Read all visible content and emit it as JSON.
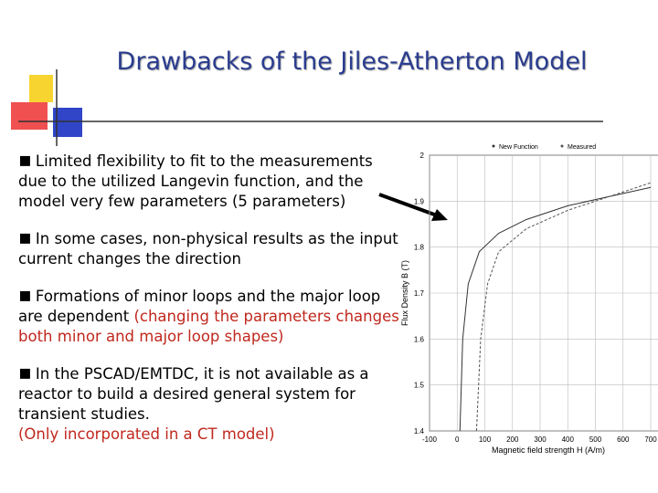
{
  "header": {
    "title": "Drawbacks of the Jiles-Atherton Model"
  },
  "bullets": [
    {
      "text": "Limited flexibility to fit to the measurements due to the utilized Langevin function, and the model very few parameters (5 parameters)"
    },
    {
      "text": "In some cases, non-physical results as the input current changes the direction"
    },
    {
      "text": "Formations of minor loops and the major loop are dependent",
      "note": "(changing the parameters changes both minor and major loop shapes)"
    },
    {
      "text": "In the PSCAD/EMTDC, it is not available as a reactor to build a desired general system for transient studies.",
      "note": "(Only incorporated in a CT model)"
    }
  ],
  "chart_data": {
    "type": "line",
    "x_label": "Magnetic field strength H (A/m)",
    "y_label": "Flux Density B (T)",
    "xlim": [
      -100,
      700
    ],
    "xticks": [
      -100,
      0,
      100,
      200,
      300,
      400,
      500,
      600,
      700
    ],
    "ylim": [
      1.4,
      2
    ],
    "yticks": [
      1.4,
      1.5,
      1.6,
      1.7,
      1.8,
      1.9,
      2
    ],
    "series": [
      {
        "name": "New Function",
        "color": "#333333",
        "x": [
          10,
          20,
          40,
          80,
          150,
          250,
          400,
          550,
          700
        ],
        "values": [
          1.4,
          1.6,
          1.72,
          1.79,
          1.83,
          1.86,
          1.89,
          1.91,
          1.93
        ]
      },
      {
        "name": "Measured",
        "color": "#555555",
        "x": [
          70,
          85,
          110,
          150,
          250,
          400,
          550,
          700
        ],
        "values": [
          1.4,
          1.6,
          1.72,
          1.79,
          1.84,
          1.88,
          1.91,
          1.94
        ]
      }
    ]
  }
}
